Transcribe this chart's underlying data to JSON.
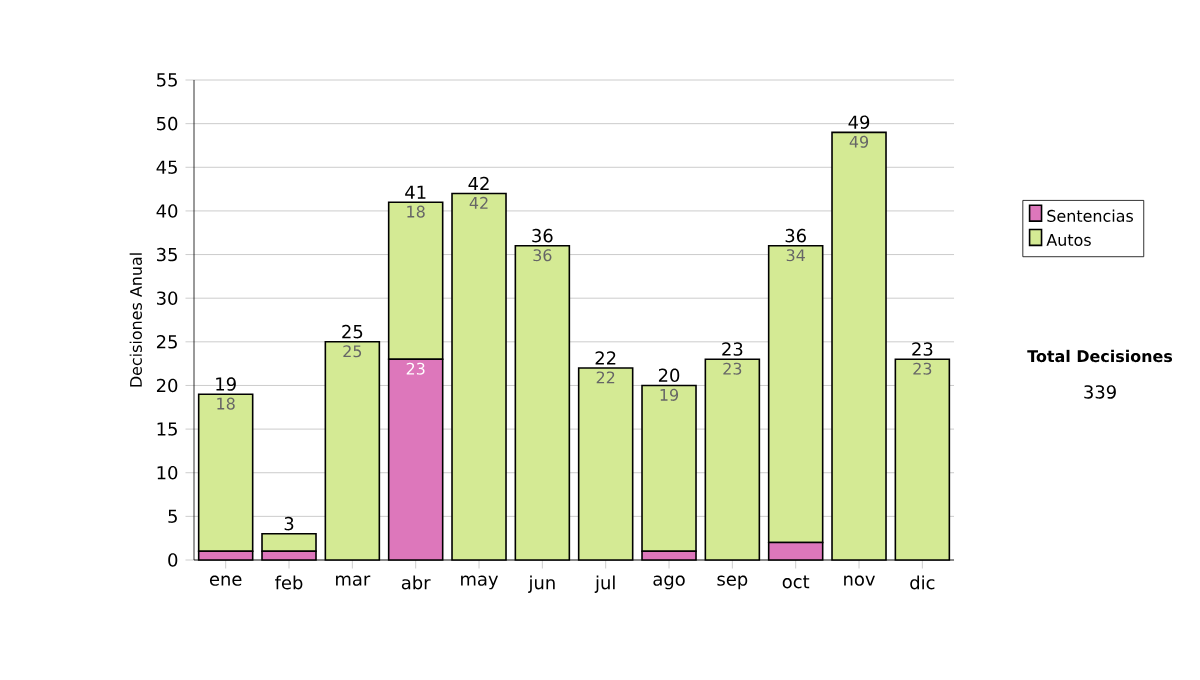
{
  "chart_data": {
    "type": "bar",
    "stacked": true,
    "ylabel": "Decisiones Anual",
    "categories": [
      "ene",
      "feb",
      "mar",
      "abr",
      "may",
      "jun",
      "jul",
      "ago",
      "sep",
      "oct",
      "nov",
      "dic"
    ],
    "series": [
      {
        "name": "Sentencias",
        "color": "#dd77bb",
        "values": [
          1,
          1,
          0,
          23,
          0,
          0,
          0,
          1,
          0,
          2,
          0,
          0
        ],
        "value_labels": [
          null,
          null,
          null,
          "23",
          null,
          null,
          null,
          null,
          null,
          null,
          null,
          null
        ]
      },
      {
        "name": "Autos",
        "color": "#d4ea94",
        "values": [
          18,
          2,
          25,
          18,
          42,
          36,
          22,
          19,
          23,
          34,
          49,
          23
        ],
        "value_labels": [
          "18",
          null,
          "25",
          "18",
          "42",
          "36",
          "22",
          "19",
          "23",
          "34",
          "49",
          "23"
        ]
      }
    ],
    "totals": [
      "19",
      "3",
      "25",
      "41",
      "42",
      "36",
      "22",
      "20",
      "23",
      "36",
      "49",
      "23"
    ],
    "ylim": [
      0,
      55
    ],
    "yticks": [
      0,
      5,
      10,
      15,
      20,
      25,
      30,
      35,
      40,
      45,
      50,
      55
    ],
    "grid": "y",
    "legend": "right",
    "annotations": [
      "Total Decisiones",
      "339"
    ]
  }
}
